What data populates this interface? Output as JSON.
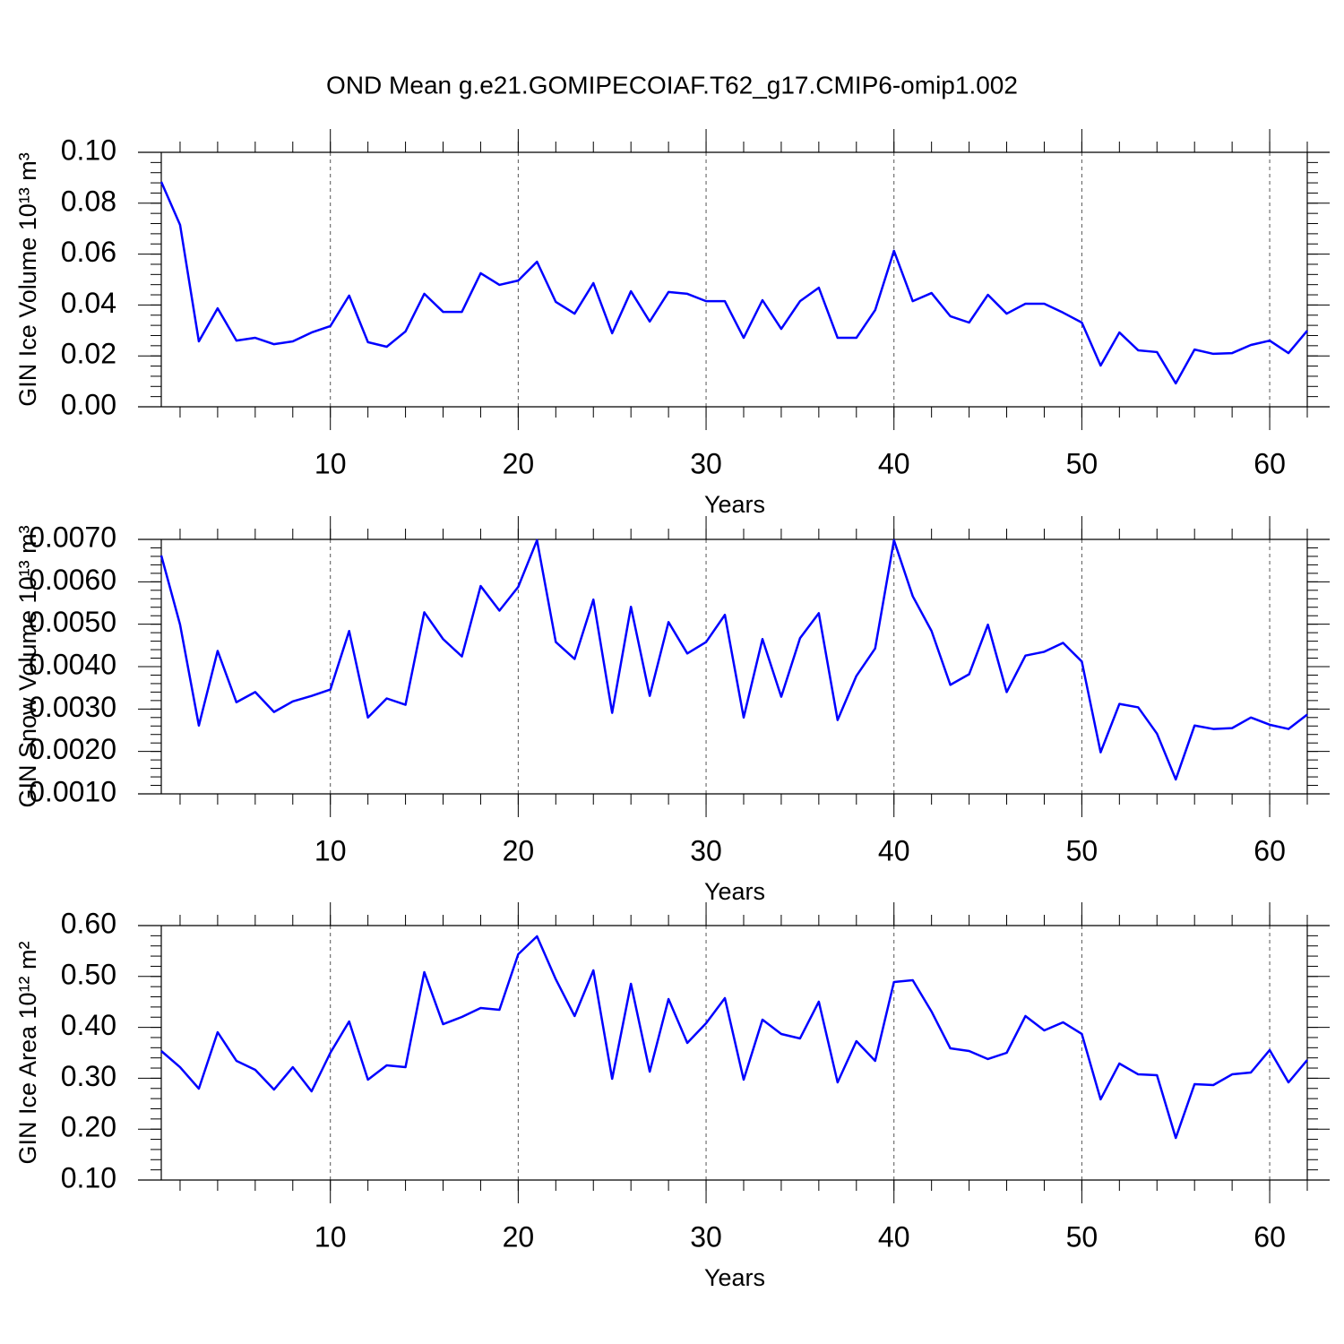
{
  "chart_data": [
    {
      "type": "line",
      "title": "OND Mean g.e21.GOMIPECOIAF.T62_g17.CMIP6-omip1.002",
      "x_label": "Years",
      "y_label": "GIN Ice Volume 10¹³ m³",
      "x": [
        1,
        2,
        3,
        4,
        5,
        6,
        7,
        8,
        9,
        10,
        11,
        12,
        13,
        14,
        15,
        16,
        17,
        18,
        19,
        20,
        21,
        22,
        23,
        24,
        25,
        26,
        27,
        28,
        29,
        30,
        31,
        32,
        33,
        34,
        35,
        36,
        37,
        38,
        39,
        40,
        41,
        42,
        43,
        44,
        45,
        46,
        47,
        48,
        49,
        50,
        51,
        52,
        53,
        54,
        55,
        56,
        57,
        58,
        59,
        60,
        61,
        62
      ],
      "values": [
        0.0884,
        0.0715,
        0.0257,
        0.0387,
        0.026,
        0.0271,
        0.0246,
        0.0257,
        0.0292,
        0.0317,
        0.0437,
        0.0254,
        0.0236,
        0.0296,
        0.0444,
        0.0373,
        0.0373,
        0.0525,
        0.0479,
        0.0496,
        0.057,
        0.0412,
        0.0366,
        0.0486,
        0.0289,
        0.0454,
        0.0335,
        0.0451,
        0.0444,
        0.0415,
        0.0415,
        0.0271,
        0.0419,
        0.0306,
        0.0415,
        0.0468,
        0.0271,
        0.0271,
        0.038,
        0.0613,
        0.0415,
        0.0447,
        0.0356,
        0.0331,
        0.044,
        0.0366,
        0.0405,
        0.0405,
        0.037,
        0.0331,
        0.0162,
        0.0292,
        0.0222,
        0.0215,
        0.0092,
        0.0225,
        0.0208,
        0.0211,
        0.0243,
        0.026,
        0.0211,
        0.0299
      ],
      "color": "#0000ff",
      "xlim": [
        1,
        62
      ],
      "xticks": [
        10,
        20,
        30,
        40,
        50,
        60
      ],
      "ylim": [
        0,
        0.1
      ],
      "yticks": [
        {
          "value": 0,
          "label": "0.00"
        },
        {
          "value": 0.02,
          "label": "0.02"
        },
        {
          "value": 0.04,
          "label": "0.04"
        },
        {
          "value": 0.06,
          "label": "0.06"
        },
        {
          "value": 0.08,
          "label": "0.08"
        },
        {
          "value": 0.1,
          "label": "0.10"
        }
      ],
      "grid": true
    },
    {
      "type": "line",
      "x_label": "Years",
      "y_label": "GIN Snow Volume 10¹³ m³",
      "x": [
        1,
        2,
        3,
        4,
        5,
        6,
        7,
        8,
        9,
        10,
        11,
        12,
        13,
        14,
        15,
        16,
        17,
        18,
        19,
        20,
        21,
        22,
        23,
        24,
        25,
        26,
        27,
        28,
        29,
        30,
        31,
        32,
        33,
        34,
        35,
        36,
        37,
        38,
        39,
        40,
        41,
        42,
        43,
        44,
        45,
        46,
        47,
        48,
        49,
        50,
        51,
        52,
        53,
        54,
        55,
        56,
        57,
        58,
        59,
        60,
        61,
        62
      ],
      "values": [
        0.00662,
        0.00499,
        0.00261,
        0.00437,
        0.00316,
        0.0034,
        0.00293,
        0.00318,
        0.00331,
        0.00346,
        0.00484,
        0.0028,
        0.00325,
        0.0031,
        0.00528,
        0.00465,
        0.00424,
        0.0059,
        0.00532,
        0.00588,
        0.00698,
        0.00458,
        0.00418,
        0.00558,
        0.00291,
        0.00541,
        0.00331,
        0.00505,
        0.00431,
        0.00458,
        0.00522,
        0.0028,
        0.00465,
        0.00329,
        0.00467,
        0.00526,
        0.00274,
        0.00378,
        0.00443,
        0.00698,
        0.00566,
        0.00484,
        0.00357,
        0.00382,
        0.00499,
        0.0034,
        0.00426,
        0.00435,
        0.00456,
        0.00412,
        0.00198,
        0.00312,
        0.00304,
        0.00242,
        0.00134,
        0.00261,
        0.00253,
        0.00255,
        0.0028,
        0.00263,
        0.00253,
        0.00287
      ],
      "color": "#0000ff",
      "xlim": [
        1,
        62
      ],
      "xticks": [
        10,
        20,
        30,
        40,
        50,
        60
      ],
      "ylim": [
        0.001,
        0.007
      ],
      "yticks": [
        {
          "value": 0.001,
          "label": "0.0010"
        },
        {
          "value": 0.002,
          "label": "0.0020"
        },
        {
          "value": 0.003,
          "label": "0.0030"
        },
        {
          "value": 0.004,
          "label": "0.0040"
        },
        {
          "value": 0.005,
          "label": "0.0050"
        },
        {
          "value": 0.006,
          "label": "0.0060"
        },
        {
          "value": 0.007,
          "label": "0.0070"
        }
      ],
      "grid": true
    },
    {
      "type": "line",
      "x_label": "Years",
      "y_label": "GIN Ice Area 10¹² m²",
      "x": [
        1,
        2,
        3,
        4,
        5,
        6,
        7,
        8,
        9,
        10,
        11,
        12,
        13,
        14,
        15,
        16,
        17,
        18,
        19,
        20,
        21,
        22,
        23,
        24,
        25,
        26,
        27,
        28,
        29,
        30,
        31,
        32,
        33,
        34,
        35,
        36,
        37,
        38,
        39,
        40,
        41,
        42,
        43,
        44,
        45,
        46,
        47,
        48,
        49,
        50,
        51,
        52,
        53,
        54,
        55,
        56,
        57,
        58,
        59,
        60,
        61,
        62
      ],
      "values": [
        0.3535,
        0.3218,
        0.2796,
        0.3905,
        0.3342,
        0.3165,
        0.2778,
        0.3218,
        0.2743,
        0.35,
        0.4116,
        0.2972,
        0.3254,
        0.3218,
        0.5085,
        0.4063,
        0.4204,
        0.438,
        0.4345,
        0.5437,
        0.5789,
        0.4944,
        0.4222,
        0.512,
        0.2989,
        0.4856,
        0.313,
        0.4556,
        0.3694,
        0.4081,
        0.4574,
        0.2972,
        0.4151,
        0.387,
        0.3782,
        0.4504,
        0.2919,
        0.3729,
        0.3342,
        0.4891,
        0.4926,
        0.431,
        0.3588,
        0.3535,
        0.3377,
        0.35,
        0.4222,
        0.394,
        0.4099,
        0.387,
        0.2585,
        0.3289,
        0.3077,
        0.306,
        0.1827,
        0.2884,
        0.2866,
        0.3077,
        0.3113,
        0.3553,
        0.2919,
        0.3359
      ],
      "color": "#0000ff",
      "xlim": [
        1,
        62
      ],
      "xticks": [
        10,
        20,
        30,
        40,
        50,
        60
      ],
      "ylim": [
        0.1,
        0.6
      ],
      "yticks": [
        {
          "value": 0.1,
          "label": "0.10"
        },
        {
          "value": 0.2,
          "label": "0.20"
        },
        {
          "value": 0.3,
          "label": "0.30"
        },
        {
          "value": 0.4,
          "label": "0.40"
        },
        {
          "value": 0.5,
          "label": "0.50"
        },
        {
          "value": 0.6,
          "label": "0.60"
        }
      ],
      "grid": true
    }
  ]
}
